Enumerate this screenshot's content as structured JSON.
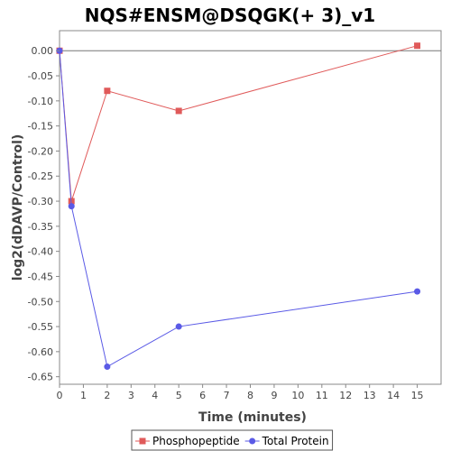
{
  "chart_data": {
    "type": "line",
    "title": "NQS#ENSM@DSQGK(+ 3)_v1",
    "xlabel": "Time (minutes)",
    "ylabel": "log2(dDAVP/Control)",
    "xlim": [
      0,
      16
    ],
    "ylim": [
      -0.665,
      0.04
    ],
    "x_ticks": [
      0,
      1,
      2,
      3,
      4,
      5,
      6,
      7,
      8,
      9,
      10,
      11,
      12,
      13,
      14,
      15
    ],
    "y_ticks": [
      0.0,
      -0.05,
      -0.1,
      -0.15,
      -0.2,
      -0.25,
      -0.3,
      -0.35,
      -0.4,
      -0.45,
      -0.5,
      -0.55,
      -0.6,
      -0.65
    ],
    "y_tick_labels": [
      "0.00",
      "-0.05",
      "-0.10",
      "-0.15",
      "-0.20",
      "-0.25",
      "-0.30",
      "-0.35",
      "-0.40",
      "-0.45",
      "-0.50",
      "-0.55",
      "-0.60",
      "-0.65"
    ],
    "zero_line": true,
    "grid": false,
    "legend_position": "bottom",
    "series": [
      {
        "name": "Phosphopeptide",
        "color": "#e05a5a",
        "marker": "square",
        "x": [
          0,
          0.5,
          2,
          5,
          15
        ],
        "y": [
          0.0,
          -0.3,
          -0.08,
          -0.12,
          0.01
        ]
      },
      {
        "name": "Total Protein",
        "color": "#5a5ae6",
        "marker": "circle",
        "x": [
          0,
          0.5,
          2,
          5,
          15
        ],
        "y": [
          0.0,
          -0.31,
          -0.63,
          -0.55,
          -0.48
        ]
      }
    ]
  }
}
